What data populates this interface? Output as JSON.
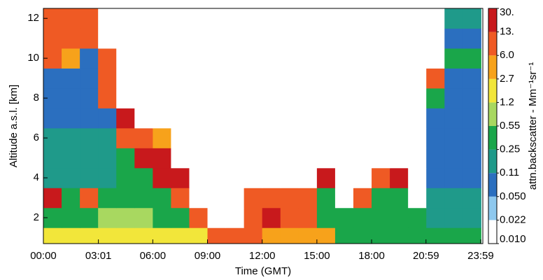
{
  "chart_data": {
    "type": "heatmap",
    "xlabel": "Time (GMT)",
    "ylabel": "Altitude a.s.l. [km]",
    "colorbar_label": "attn.backscatter - Mm⁻¹sr⁻¹",
    "x": [
      0.5,
      1.5,
      2.5,
      3.5,
      4.5,
      5.5,
      6.5,
      7.5,
      8.5,
      9.5,
      10.5,
      11.5,
      12.5,
      13.5,
      14.5,
      15.5,
      16.5,
      17.5,
      18.5,
      19.5,
      20.5,
      21.5,
      22.5,
      23.5
    ],
    "y": [
      1,
      2,
      3,
      4,
      5,
      6,
      7,
      8,
      9,
      10,
      11,
      12
    ],
    "values": [
      [
        1.5,
        1.5,
        1.5,
        1.5,
        1.5,
        1.5,
        1.5,
        1.2,
        1.2,
        10,
        10,
        8,
        5,
        5,
        5,
        3,
        0.3,
        0.3,
        0.3,
        0.3,
        0.3,
        0.3,
        0.3,
        0.3
      ],
      [
        0.4,
        0.4,
        0.4,
        0.6,
        0.6,
        0.6,
        0.5,
        0.5,
        8,
        0.01,
        0.01,
        10,
        20,
        8,
        8,
        0.3,
        0.3,
        0.3,
        0.3,
        0.3,
        0.3,
        0.2,
        0.2,
        0.2
      ],
      [
        15,
        0.3,
        12,
        0.3,
        0.3,
        0.3,
        0.3,
        10,
        0.01,
        0.01,
        0.01,
        6,
        6,
        6,
        6,
        0.4,
        0.01,
        10,
        0.3,
        0.3,
        0.01,
        0.15,
        0.15,
        0.15
      ],
      [
        0.12,
        0.12,
        0.12,
        0.2,
        0.3,
        0.4,
        20,
        20,
        0.01,
        0.01,
        0.01,
        0.01,
        0.01,
        0.01,
        0.01,
        15,
        0.01,
        0.01,
        8,
        15,
        0.01,
        0.1,
        0.1,
        0.1
      ],
      [
        0.2,
        0.2,
        0.2,
        0.2,
        0.3,
        20,
        15,
        0.01,
        0.01,
        0.01,
        0.01,
        0.01,
        0.01,
        0.01,
        0.01,
        0.01,
        0.01,
        0.01,
        0.01,
        0.01,
        0.01,
        0.1,
        0.1,
        0.1
      ],
      [
        0.15,
        0.15,
        0.15,
        0.15,
        8,
        6,
        3,
        0.01,
        0.01,
        0.01,
        0.01,
        0.01,
        0.01,
        0.01,
        0.01,
        0.01,
        0.01,
        0.01,
        0.01,
        0.01,
        0.01,
        0.1,
        0.1,
        0.1
      ],
      [
        0.08,
        0.08,
        0.08,
        0.08,
        15,
        0.01,
        0.01,
        0.01,
        0.01,
        0.01,
        0.01,
        0.01,
        0.01,
        0.01,
        0.01,
        0.01,
        0.01,
        0.01,
        0.01,
        0.01,
        0.01,
        0.07,
        0.07,
        0.07
      ],
      [
        0.07,
        0.07,
        0.07,
        10,
        0.01,
        0.01,
        0.01,
        0.01,
        0.01,
        0.01,
        0.01,
        0.01,
        0.01,
        0.01,
        0.01,
        0.01,
        0.01,
        0.01,
        0.01,
        0.01,
        0.01,
        0.3,
        0.08,
        0.08
      ],
      [
        0.06,
        0.06,
        0.06,
        12,
        0.01,
        0.01,
        0.01,
        0.01,
        0.01,
        0.01,
        0.01,
        0.01,
        0.01,
        0.01,
        0.01,
        0.01,
        0.01,
        0.01,
        0.01,
        0.01,
        0.01,
        10,
        0.06,
        0.06
      ],
      [
        6,
        3,
        0.06,
        8,
        0.01,
        0.01,
        0.01,
        0.01,
        0.01,
        0.01,
        0.01,
        0.01,
        0.01,
        0.01,
        0.01,
        0.01,
        0.01,
        0.01,
        0.01,
        0.01,
        0.01,
        0.01,
        0.4,
        0.4
      ],
      [
        10,
        10,
        12,
        0.01,
        0.01,
        0.01,
        0.01,
        0.01,
        0.01,
        0.01,
        0.01,
        0.01,
        0.01,
        0.01,
        0.01,
        0.01,
        0.01,
        0.01,
        0.01,
        0.01,
        0.01,
        0.01,
        0.08,
        0.08
      ],
      [
        8,
        8,
        10,
        0.01,
        0.01,
        0.01,
        0.01,
        0.01,
        0.01,
        0.01,
        0.01,
        0.01,
        0.01,
        0.01,
        0.01,
        0.01,
        0.01,
        0.01,
        0.01,
        0.01,
        0.01,
        0.01,
        0.15,
        0.15
      ]
    ],
    "xlim": [
      0,
      24.1
    ],
    "xticks": [
      {
        "value": 0,
        "label": "00:00"
      },
      {
        "value": 3.017,
        "label": "03:01"
      },
      {
        "value": 6,
        "label": "06:00"
      },
      {
        "value": 9,
        "label": "09:00"
      },
      {
        "value": 12,
        "label": "12:00"
      },
      {
        "value": 15,
        "label": "15:00"
      },
      {
        "value": 18,
        "label": "18:00"
      },
      {
        "value": 20.983,
        "label": "20:59"
      },
      {
        "value": 23.983,
        "label": "23:59"
      }
    ],
    "ylim": [
      0.7,
      12.5
    ],
    "yticks": [
      2,
      4,
      6,
      8,
      10,
      12
    ],
    "colorbar_ticks": [
      {
        "value": 0.01,
        "label": "0.010"
      },
      0.022,
      {
        "value": 0.05,
        "label": "0.050"
      },
      0.11,
      0.25,
      0.55,
      1.2,
      2.7,
      {
        "value": 6,
        "label": "6.0"
      },
      {
        "value": 13,
        "label": "13."
      },
      {
        "value": 30,
        "label": "30."
      }
    ],
    "colors": [
      "#ffffff",
      "#8ec8ee",
      "#2b6fbf",
      "#1f9a8a",
      "#1aa64a",
      "#a8d860",
      "#f2e63a",
      "#f7a21b",
      "#ef5a24",
      "#c8191c"
    ]
  }
}
